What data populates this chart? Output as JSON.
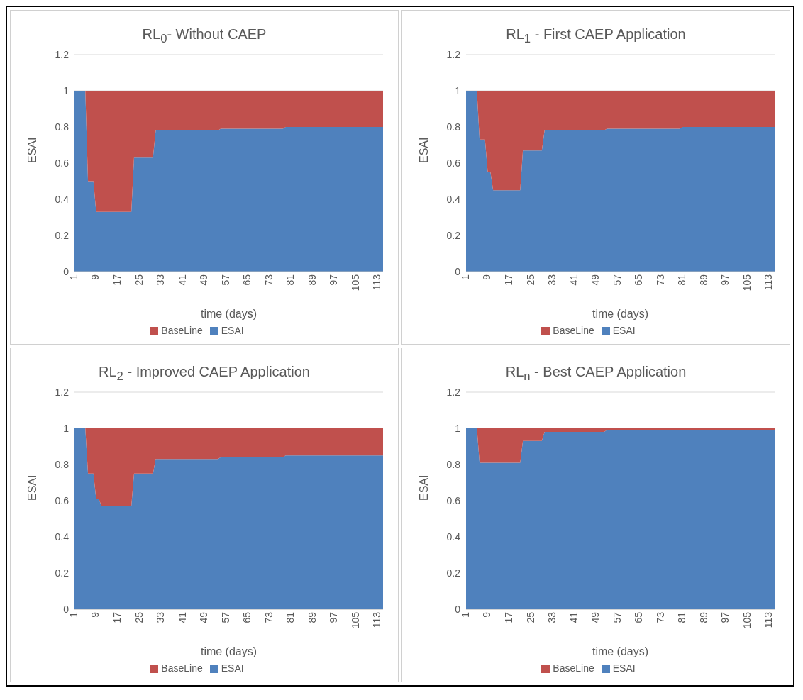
{
  "chart_data": [
    {
      "type": "area",
      "title": "RL$_{0}$- Without CAEP",
      "xlabel": "time (days)",
      "ylabel": "ESAI",
      "stacked": true,
      "grid": "y",
      "legend": "bottom",
      "xlim": [
        1,
        115
      ],
      "xticks": [
        1,
        9,
        17,
        25,
        33,
        41,
        49,
        57,
        65,
        73,
        81,
        89,
        97,
        105,
        113
      ],
      "ylim": [
        0,
        1.2
      ],
      "yticks": [
        0,
        0.2,
        0.4,
        0.6,
        0.8,
        1,
        1.2
      ],
      "x": [
        1,
        5,
        6,
        8,
        9,
        22,
        23,
        30,
        31,
        54,
        55,
        78,
        79,
        115
      ],
      "series": [
        {
          "name": "ESAI",
          "color": "#4f81bd",
          "values": [
            1,
            1,
            0.5,
            0.5,
            0.33,
            0.33,
            0.63,
            0.63,
            0.78,
            0.78,
            0.79,
            0.79,
            0.8,
            0.8
          ]
        },
        {
          "name": "BaseLine",
          "color": "#c0504d",
          "values": [
            0,
            0,
            0.5,
            0.5,
            0.67,
            0.67,
            0.37,
            0.37,
            0.22,
            0.22,
            0.21,
            0.21,
            0.2,
            0.2
          ]
        }
      ]
    },
    {
      "type": "area",
      "title": "RL$_{1}$ - First CAEP Application",
      "xlabel": "time (days)",
      "ylabel": "ESAI",
      "stacked": true,
      "grid": "y",
      "legend": "bottom",
      "xlim": [
        1,
        115
      ],
      "xticks": [
        1,
        9,
        17,
        25,
        33,
        41,
        49,
        57,
        65,
        73,
        81,
        89,
        97,
        105,
        113
      ],
      "ylim": [
        0,
        1.2
      ],
      "yticks": [
        0,
        0.2,
        0.4,
        0.6,
        0.8,
        1,
        1.2
      ],
      "x": [
        1,
        5,
        6,
        8,
        9,
        10,
        11,
        21,
        22,
        29,
        30,
        52,
        53,
        80,
        81,
        115
      ],
      "series": [
        {
          "name": "ESAI",
          "color": "#4f81bd",
          "values": [
            1,
            1,
            0.73,
            0.73,
            0.55,
            0.55,
            0.45,
            0.45,
            0.67,
            0.67,
            0.78,
            0.78,
            0.79,
            0.79,
            0.8,
            0.8
          ]
        },
        {
          "name": "BaseLine",
          "color": "#c0504d",
          "values": [
            0,
            0,
            0.27,
            0.27,
            0.45,
            0.45,
            0.55,
            0.55,
            0.33,
            0.33,
            0.22,
            0.22,
            0.21,
            0.21,
            0.2,
            0.2
          ]
        }
      ]
    },
    {
      "type": "area",
      "title": "RL$_{2}$ - Improved CAEP Application",
      "xlabel": "time (days)",
      "ylabel": "ESAI",
      "stacked": true,
      "grid": "y",
      "legend": "bottom",
      "xlim": [
        1,
        115
      ],
      "xticks": [
        1,
        9,
        17,
        25,
        33,
        41,
        49,
        57,
        65,
        73,
        81,
        89,
        97,
        105,
        113
      ],
      "ylim": [
        0,
        1.2
      ],
      "yticks": [
        0,
        0.2,
        0.4,
        0.6,
        0.8,
        1,
        1.2
      ],
      "x": [
        1,
        5,
        6,
        8,
        9,
        10,
        11,
        22,
        23,
        30,
        31,
        54,
        55,
        78,
        79,
        115
      ],
      "series": [
        {
          "name": "ESAI",
          "color": "#4f81bd",
          "values": [
            1,
            1,
            0.75,
            0.75,
            0.61,
            0.61,
            0.57,
            0.57,
            0.75,
            0.75,
            0.83,
            0.83,
            0.84,
            0.84,
            0.85,
            0.85
          ]
        },
        {
          "name": "BaseLine",
          "color": "#c0504d",
          "values": [
            0,
            0,
            0.25,
            0.25,
            0.39,
            0.39,
            0.43,
            0.43,
            0.25,
            0.25,
            0.17,
            0.17,
            0.16,
            0.16,
            0.15,
            0.15
          ]
        }
      ]
    },
    {
      "type": "area",
      "title": "RL$_{n}$ - Best CAEP Application",
      "xlabel": "time (days)",
      "ylabel": "ESAI",
      "stacked": true,
      "grid": "y",
      "legend": "bottom",
      "xlim": [
        1,
        115
      ],
      "xticks": [
        1,
        9,
        17,
        25,
        33,
        41,
        49,
        57,
        65,
        73,
        81,
        89,
        97,
        105,
        113
      ],
      "ylim": [
        0,
        1.2
      ],
      "yticks": [
        0,
        0.2,
        0.4,
        0.6,
        0.8,
        1,
        1.2
      ],
      "x": [
        1,
        5,
        6,
        21,
        22,
        29,
        30,
        52,
        53,
        115
      ],
      "series": [
        {
          "name": "ESAI",
          "color": "#4f81bd",
          "values": [
            1,
            1,
            0.81,
            0.81,
            0.93,
            0.93,
            0.98,
            0.98,
            0.99,
            0.99
          ]
        },
        {
          "name": "BaseLine",
          "color": "#c0504d",
          "values": [
            0,
            0,
            0.19,
            0.19,
            0.07,
            0.07,
            0.02,
            0.02,
            0.01,
            0.01
          ]
        }
      ]
    }
  ]
}
